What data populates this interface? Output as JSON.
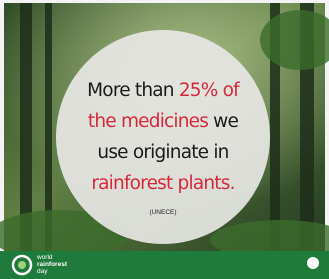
{
  "poster": {
    "lines": [
      [
        {
          "text": "More than ",
          "color": "#1a1a1a"
        },
        {
          "text": "25% of",
          "color": "#d6283a"
        }
      ],
      [
        {
          "text": "the medicines",
          "color": "#d6283a"
        },
        {
          "text": " we",
          "color": "#1a1a1a"
        }
      ],
      [
        {
          "text": "use originate in",
          "color": "#1a1a1a"
        }
      ],
      [
        {
          "text": "rainforest plants.",
          "color": "#d6283a"
        }
      ]
    ],
    "source": "(UNECE)",
    "logo": {
      "lines": [
        "world",
        "rainforest",
        "day"
      ]
    }
  }
}
